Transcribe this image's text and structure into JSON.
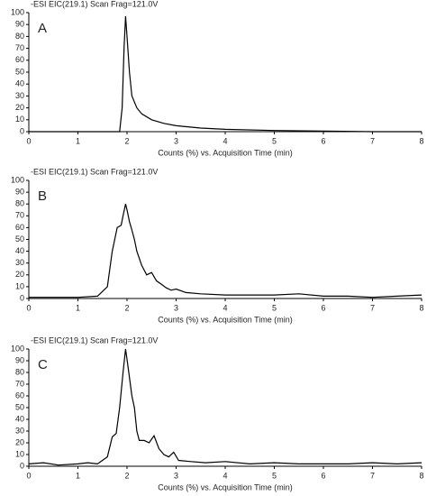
{
  "chart_data": [
    {
      "type": "line",
      "title": "-ESI EIC(219.1) Scan Frag=121.0V",
      "annotation": "A",
      "x_label": "Counts (%) vs. Acquisition Time (min)",
      "x": [
        0,
        1,
        1.85,
        1.9,
        1.94,
        1.97,
        2.0,
        2.05,
        2.1,
        2.2,
        2.3,
        2.5,
        2.75,
        3,
        3.5,
        4,
        5,
        6,
        7,
        8
      ],
      "values": [
        0,
        0,
        0,
        20,
        70,
        97,
        80,
        50,
        30,
        20,
        15,
        10,
        7,
        5,
        3,
        2,
        1,
        0.5,
        0,
        0
      ],
      "color": "#000000",
      "xlim": [
        0,
        8
      ],
      "xticks": [
        0,
        1,
        2,
        3,
        4,
        5,
        6,
        7,
        8
      ],
      "ylim": [
        0,
        100
      ],
      "yticks": [
        0,
        10,
        20,
        30,
        40,
        50,
        60,
        70,
        80,
        90,
        100
      ]
    },
    {
      "type": "line",
      "title": "-ESI EIC(219.1) Scan Frag=121.0V",
      "annotation": "B",
      "x_label": "Counts (%) vs. Acquisition Time (min)",
      "x": [
        0,
        0.5,
        1,
        1.4,
        1.6,
        1.7,
        1.8,
        1.88,
        1.92,
        1.97,
        2.0,
        2.05,
        2.1,
        2.15,
        2.2,
        2.3,
        2.4,
        2.5,
        2.6,
        2.7,
        2.8,
        2.9,
        3.0,
        3.2,
        3.5,
        4,
        4.5,
        5,
        5.5,
        6,
        6.5,
        7,
        7.5,
        8
      ],
      "values": [
        1,
        1,
        1,
        2,
        10,
        40,
        60,
        62,
        70,
        80,
        75,
        65,
        58,
        50,
        40,
        28,
        20,
        22,
        15,
        12,
        9,
        7,
        8,
        5,
        4,
        3,
        3,
        3,
        4,
        2,
        2,
        1,
        2,
        3
      ],
      "color": "#000000",
      "xlim": [
        0,
        8
      ],
      "xticks": [
        0,
        1,
        2,
        3,
        4,
        5,
        6,
        7,
        8
      ],
      "ylim": [
        0,
        100
      ],
      "yticks": [
        0,
        10,
        20,
        30,
        40,
        50,
        60,
        70,
        80,
        90,
        100
      ]
    },
    {
      "type": "line",
      "title": "-ESI EIC(219.1) Scan Frag=121.0V",
      "annotation": "C",
      "x_label": "Counts (%) vs. Acquisition Time (min)",
      "x": [
        0,
        0.3,
        0.6,
        1,
        1.2,
        1.4,
        1.6,
        1.7,
        1.78,
        1.85,
        1.92,
        1.97,
        2.02,
        2.1,
        2.15,
        2.2,
        2.25,
        2.35,
        2.45,
        2.55,
        2.65,
        2.75,
        2.85,
        2.95,
        3.05,
        3.3,
        3.6,
        4,
        4.5,
        5,
        5.5,
        6,
        6.5,
        7,
        7.5,
        8
      ],
      "values": [
        2,
        3,
        1,
        2,
        3,
        2,
        8,
        25,
        28,
        50,
        80,
        100,
        85,
        60,
        50,
        30,
        22,
        22,
        20,
        26,
        15,
        10,
        8,
        12,
        5,
        4,
        3,
        4,
        2,
        3,
        2,
        2,
        2,
        3,
        2,
        3
      ],
      "color": "#000000",
      "xlim": [
        0,
        8
      ],
      "xticks": [
        0,
        1,
        2,
        3,
        4,
        5,
        6,
        7,
        8
      ],
      "ylim": [
        0,
        100
      ],
      "yticks": [
        0,
        10,
        20,
        30,
        40,
        50,
        60,
        70,
        80,
        90,
        100
      ]
    }
  ]
}
